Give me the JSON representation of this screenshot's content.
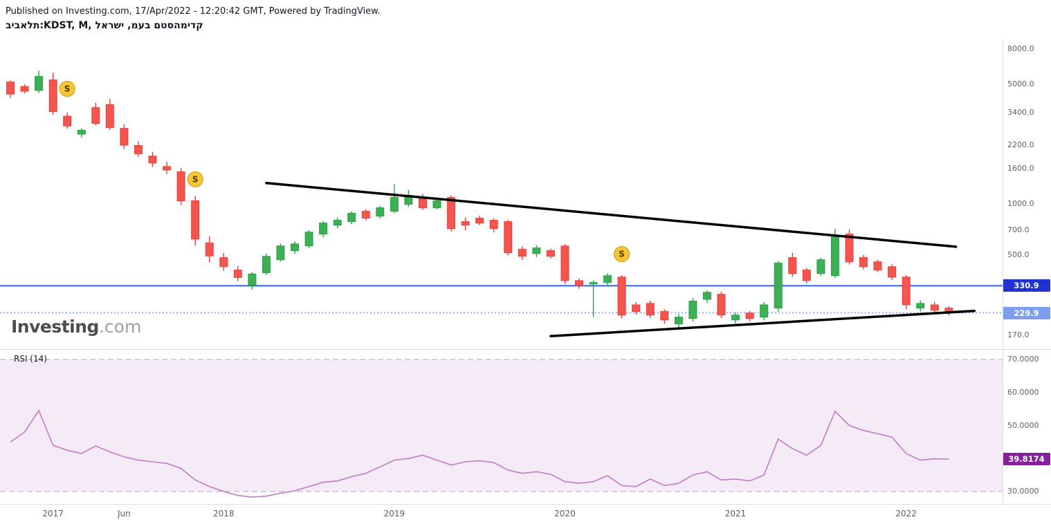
{
  "header": {
    "published_line": "Published on Investing.com, 17/Apr/2022 - 12:20:42 GMT, Powered by TradingView.",
    "symbol_title": "תלאביב:KDST, M, קדימהסטם בעמ, ישראל"
  },
  "watermark": {
    "text_main": "Investing",
    "text_suffix": ".com"
  },
  "rsi_label": "RSI (14)",
  "colors": {
    "candle_up": "#3cb054",
    "candle_up_border": "#2e9e44",
    "candle_down": "#f6544e",
    "candle_down_border": "#e3413c",
    "trendline": "#000000",
    "marker_bg": "#f8c632",
    "marker_border": "#cfa125",
    "marker_text": "#4a3b00",
    "rsi_line": "#c678c6",
    "rsi_band": "rgba(142,36,170,0.09)",
    "rsi_band_border": "#b0aab8",
    "rsi_badge": "#87209b",
    "axis_text": "#5a616b",
    "separator": "#d8dbe0"
  },
  "chart_data": [
    {
      "type": "candlestick",
      "title": "תלאביב:KDST, M",
      "timeframe": "M",
      "y_scale": {
        "type": "log",
        "min": 141,
        "max": 9060,
        "tick_labels": [
          "8000.0",
          "5000.0",
          "3400.0",
          "2200.0",
          "1600.0",
          "1000.0",
          "700.0",
          "500.0",
          "170.0"
        ]
      },
      "x_labels": [
        {
          "index": 3,
          "text": "2017"
        },
        {
          "index": 8,
          "text": "Jun"
        },
        {
          "index": 15,
          "text": "2018"
        },
        {
          "index": 27,
          "text": "2019"
        },
        {
          "index": 39,
          "text": "2020"
        },
        {
          "index": 51,
          "text": "2021"
        },
        {
          "index": 63,
          "text": "2022"
        }
      ],
      "candles": [
        [
          5150,
          5250,
          4150,
          4380
        ],
        [
          4850,
          5000,
          4420,
          4550
        ],
        [
          4600,
          6000,
          4450,
          5550
        ],
        [
          5300,
          5850,
          3300,
          3460
        ],
        [
          3250,
          3420,
          2750,
          2850
        ],
        [
          2550,
          2760,
          2440,
          2690
        ],
        [
          3650,
          3900,
          2880,
          2950
        ],
        [
          3800,
          4100,
          2700,
          2790
        ],
        [
          2760,
          2920,
          2080,
          2200
        ],
        [
          2190,
          2320,
          1880,
          1960
        ],
        [
          1900,
          2010,
          1640,
          1730
        ],
        [
          1650,
          1760,
          1490,
          1575
        ],
        [
          1540,
          1620,
          980,
          1040
        ],
        [
          1040,
          1110,
          570,
          620
        ],
        [
          590,
          645,
          455,
          495
        ],
        [
          484,
          515,
          405,
          428
        ],
        [
          409,
          432,
          352,
          370
        ],
        [
          333,
          398,
          315,
          388
        ],
        [
          395,
          512,
          382,
          492
        ],
        [
          470,
          585,
          458,
          566
        ],
        [
          531,
          602,
          508,
          582
        ],
        [
          566,
          700,
          548,
          682
        ],
        [
          664,
          792,
          638,
          770
        ],
        [
          749,
          830,
          718,
          800
        ],
        [
          785,
          902,
          758,
          878
        ],
        [
          903,
          930,
          798,
          823
        ],
        [
          846,
          972,
          818,
          946
        ],
        [
          903,
          1300,
          878,
          1088
        ],
        [
          991,
          1205,
          958,
          1119
        ],
        [
          1088,
          1142,
          918,
          946
        ],
        [
          946,
          1092,
          928,
          1038
        ],
        [
          1088,
          1122,
          688,
          715
        ],
        [
          785,
          832,
          698,
          749
        ],
        [
          823,
          852,
          748,
          771
        ],
        [
          800,
          822,
          678,
          715
        ],
        [
          785,
          802,
          498,
          516
        ],
        [
          541,
          562,
          468,
          493
        ],
        [
          511,
          572,
          488,
          551
        ],
        [
          531,
          546,
          478,
          493
        ],
        [
          566,
          582,
          338,
          355
        ],
        [
          355,
          366,
          318,
          333
        ],
        [
          339,
          356,
          217,
          346
        ],
        [
          346,
          392,
          328,
          379
        ],
        [
          372,
          381,
          213,
          223
        ],
        [
          256,
          266,
          224,
          234
        ],
        [
          261,
          271,
          214,
          223
        ],
        [
          234,
          241,
          198,
          209
        ],
        [
          198,
          226,
          189,
          217
        ],
        [
          213,
          281,
          204,
          269
        ],
        [
          276,
          311,
          263,
          303
        ],
        [
          295,
          306,
          214,
          223
        ],
        [
          209,
          231,
          199,
          223
        ],
        [
          229,
          236,
          204,
          213
        ],
        [
          217,
          266,
          208,
          256
        ],
        [
          245,
          462,
          233,
          449
        ],
        [
          484,
          516,
          373,
          390
        ],
        [
          409,
          421,
          342,
          355
        ],
        [
          390,
          482,
          378,
          470
        ],
        [
          379,
          715,
          368,
          651
        ],
        [
          664,
          706,
          440,
          457
        ],
        [
          484,
          502,
          412,
          428
        ],
        [
          457,
          472,
          398,
          409
        ],
        [
          428,
          443,
          358,
          372
        ],
        [
          372,
          382,
          242,
          256
        ],
        [
          245,
          272,
          234,
          261
        ],
        [
          256,
          266,
          228,
          238
        ],
        [
          245,
          251,
          222,
          229.9
        ]
      ],
      "markers": [
        {
          "index": 4,
          "price": 4700,
          "label": "S"
        },
        {
          "index": 13,
          "price": 1390,
          "label": "S"
        },
        {
          "index": 43,
          "price": 507,
          "label": "S"
        }
      ],
      "trendlines": [
        {
          "name": "upper-trendline",
          "from": {
            "index": 18,
            "price": 1320
          },
          "to": {
            "index": 66.5,
            "price": 560
          }
        },
        {
          "name": "lower-trendline",
          "from": {
            "index": 38,
            "price": 168
          },
          "to": {
            "index": 67.8,
            "price": 236
          }
        }
      ],
      "horizontal_lines": [
        {
          "name": "blue-price-line",
          "label": "330.9",
          "price": 330.9,
          "style": "solid",
          "width": 2,
          "color": "#2962ff",
          "badge_color": "#2234cf"
        },
        {
          "name": "last-price-line",
          "label": "229.9",
          "price": 229.9,
          "style": "dotted",
          "width": 1.5,
          "color": "#7e9cf0",
          "badge_color": "#7e9cf0"
        }
      ]
    },
    {
      "type": "line",
      "name": "RSI (14)",
      "values": [
        45,
        48,
        54.5,
        44,
        42.5,
        41.5,
        43.8,
        42,
        40.5,
        39.5,
        39,
        38.5,
        37,
        33.5,
        31.5,
        30,
        28.8,
        28.3,
        28.6,
        29.5,
        30.2,
        31.5,
        32.8,
        33.2,
        34.5,
        35.5,
        37.5,
        39.5,
        40,
        41,
        39.5,
        38,
        39,
        39.3,
        38.8,
        36.5,
        35.5,
        36,
        35.2,
        33,
        32.5,
        33,
        34.8,
        31.8,
        31.5,
        33.8,
        31.8,
        32.5,
        35,
        36,
        33.5,
        33.8,
        33.2,
        35,
        45.9,
        43,
        41,
        44,
        54.3,
        50,
        48.5,
        47.5,
        46.5,
        41.5,
        39.5,
        39.9,
        39.8174
      ],
      "band": [
        30,
        70
      ],
      "tick_labels": [
        "70.0000",
        "60.0000",
        "50.0000",
        "30.0000"
      ],
      "last_value": 39.8174,
      "last_label": "39.8174",
      "ylim": [
        25,
        75
      ]
    }
  ]
}
